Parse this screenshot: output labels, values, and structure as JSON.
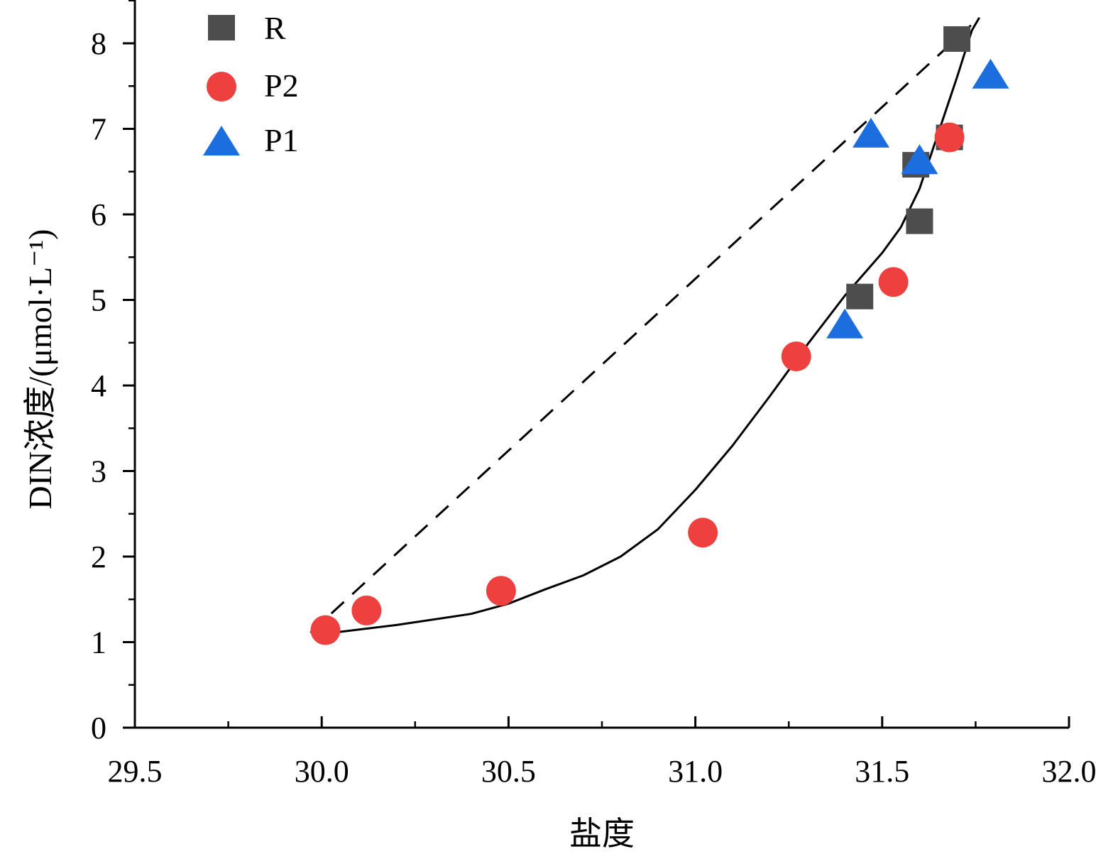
{
  "chart_data": {
    "type": "scatter",
    "xlabel": "盐度",
    "ylabel": "DIN浓度/(μmol·L⁻¹)",
    "xlim": [
      29.5,
      32.0
    ],
    "ylim": [
      0,
      8.5
    ],
    "x_ticks": [
      "29.5",
      "30.0",
      "30.5",
      "31.0",
      "31.5",
      "32.0"
    ],
    "y_ticks": [
      "0",
      "1",
      "2",
      "3",
      "4",
      "5",
      "6",
      "7",
      "8"
    ],
    "grid": false,
    "legend_position": "top-left",
    "series": [
      {
        "name": "R",
        "marker": "square",
        "color": "#4d4d4d",
        "points": [
          [
            31.44,
            5.04
          ],
          [
            31.6,
            5.92
          ],
          [
            31.59,
            6.58
          ],
          [
            31.68,
            6.9
          ],
          [
            31.7,
            8.05
          ]
        ]
      },
      {
        "name": "P2",
        "marker": "circle",
        "color": "#ef4040",
        "points": [
          [
            30.01,
            1.14
          ],
          [
            30.12,
            1.37
          ],
          [
            30.48,
            1.6
          ],
          [
            31.02,
            2.28
          ],
          [
            31.27,
            4.34
          ],
          [
            31.53,
            5.21
          ],
          [
            31.68,
            6.9
          ]
        ]
      },
      {
        "name": "P1",
        "marker": "triangle",
        "color": "#1c6ede",
        "points": [
          [
            31.4,
            4.7
          ],
          [
            31.47,
            6.93
          ],
          [
            31.6,
            6.62
          ],
          [
            31.79,
            7.62
          ]
        ]
      }
    ],
    "lines": [
      {
        "style": "dashed",
        "color": "#000000",
        "points": [
          [
            29.97,
            1.11
          ],
          [
            31.76,
            8.3
          ]
        ]
      },
      {
        "style": "solid",
        "color": "#000000",
        "points": [
          [
            30.01,
            1.1
          ],
          [
            30.2,
            1.2
          ],
          [
            30.4,
            1.33
          ],
          [
            30.5,
            1.45
          ],
          [
            30.6,
            1.62
          ],
          [
            30.7,
            1.78
          ],
          [
            30.8,
            2.0
          ],
          [
            30.9,
            2.32
          ],
          [
            31.0,
            2.78
          ],
          [
            31.1,
            3.3
          ],
          [
            31.2,
            3.88
          ],
          [
            31.3,
            4.48
          ],
          [
            31.4,
            5.05
          ],
          [
            31.5,
            5.55
          ],
          [
            31.55,
            5.85
          ],
          [
            31.6,
            6.3
          ],
          [
            31.65,
            6.95
          ],
          [
            31.7,
            7.6
          ],
          [
            31.74,
            8.15
          ],
          [
            31.76,
            8.3
          ]
        ]
      }
    ]
  }
}
